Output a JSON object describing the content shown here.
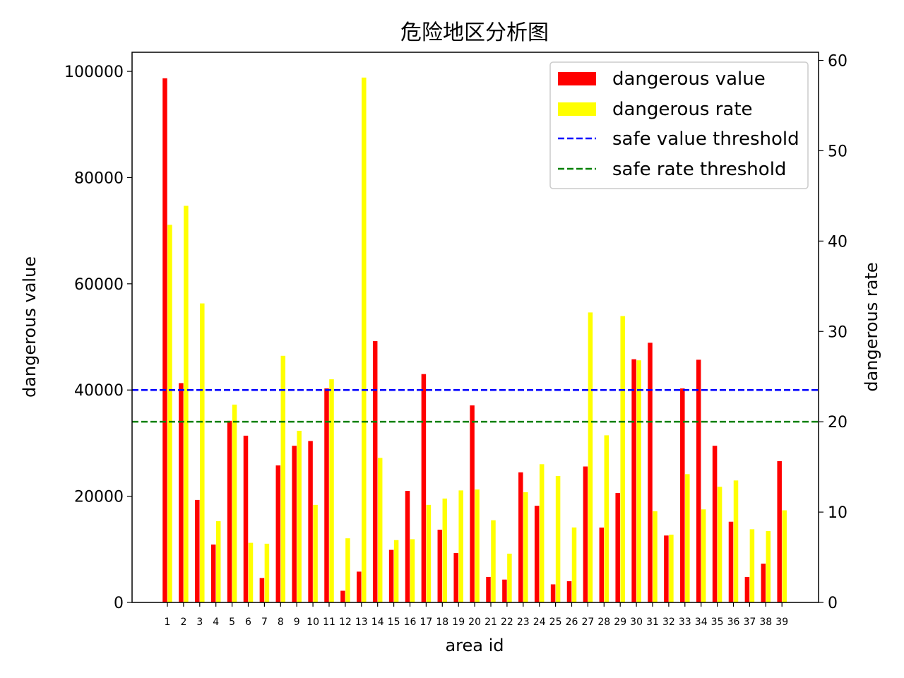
{
  "chart_data": {
    "type": "bar",
    "title": "危险地区分析图",
    "xlabel": "area id",
    "ylabel_left": "dangerous value",
    "ylabel_right": "dangerous rate",
    "ylim_left": [
      0,
      103600
    ],
    "ylim_right": [
      0,
      60.9
    ],
    "yticks_left": [
      0,
      20000,
      40000,
      60000,
      80000,
      100000
    ],
    "yticks_right": [
      0,
      10,
      20,
      30,
      40,
      50,
      60
    ],
    "categories": [
      "1",
      "2",
      "3",
      "4",
      "5",
      "6",
      "7",
      "8",
      "9",
      "10",
      "11",
      "12",
      "13",
      "14",
      "15",
      "16",
      "17",
      "18",
      "19",
      "20",
      "21",
      "22",
      "23",
      "24",
      "25",
      "26",
      "27",
      "28",
      "29",
      "30",
      "31",
      "32",
      "33",
      "34",
      "35",
      "36",
      "37",
      "38",
      "39"
    ],
    "series": [
      {
        "name": "dangerous value",
        "axis": "left",
        "color": "#ff0000",
        "values": [
          98700,
          41300,
          19300,
          10900,
          34200,
          31400,
          4600,
          25800,
          29500,
          30400,
          40300,
          2200,
          5800,
          49200,
          9900,
          21000,
          43000,
          13700,
          9300,
          37100,
          4800,
          4300,
          24500,
          18200,
          3400,
          4000,
          25600,
          14100,
          20600,
          45800,
          48900,
          12600,
          40300,
          45700,
          29500,
          15200,
          4800,
          7300,
          26600
        ]
      },
      {
        "name": "dangerous rate",
        "axis": "right",
        "color": "#ffff00",
        "values": [
          41.8,
          43.9,
          33.1,
          9.0,
          21.9,
          6.6,
          6.5,
          27.3,
          19.0,
          10.8,
          24.7,
          7.1,
          58.1,
          16.0,
          6.9,
          7.0,
          10.8,
          11.5,
          12.4,
          12.5,
          9.1,
          5.4,
          12.2,
          15.3,
          14.0,
          8.3,
          32.1,
          18.5,
          31.7,
          26.8,
          10.1,
          7.5,
          14.2,
          10.3,
          12.8,
          13.5,
          8.1,
          7.9,
          10.2
        ]
      }
    ],
    "thresholds": [
      {
        "name": "safe value threshold",
        "axis": "left",
        "value": 40000,
        "color": "#0000ff",
        "style": "dashed"
      },
      {
        "name": "safe rate threshold",
        "axis": "right",
        "value": 20,
        "color": "#008000",
        "style": "dashed"
      }
    ],
    "legend_position": "top-right",
    "grid": false
  }
}
